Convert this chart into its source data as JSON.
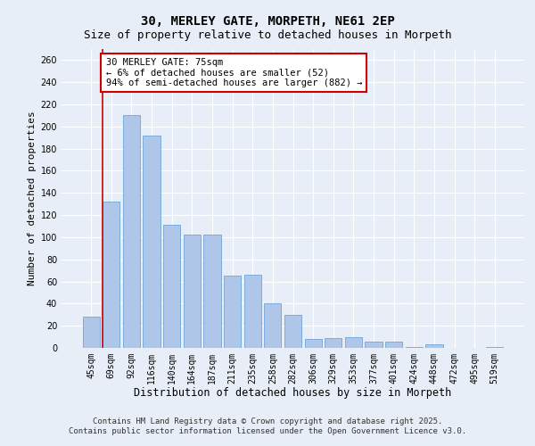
{
  "title": "30, MERLEY GATE, MORPETH, NE61 2EP",
  "subtitle": "Size of property relative to detached houses in Morpeth",
  "xlabel": "Distribution of detached houses by size in Morpeth",
  "ylabel": "Number of detached properties",
  "categories": [
    "45sqm",
    "69sqm",
    "92sqm",
    "116sqm",
    "140sqm",
    "164sqm",
    "187sqm",
    "211sqm",
    "235sqm",
    "258sqm",
    "282sqm",
    "306sqm",
    "329sqm",
    "353sqm",
    "377sqm",
    "401sqm",
    "424sqm",
    "448sqm",
    "472sqm",
    "495sqm",
    "519sqm"
  ],
  "values": [
    28,
    132,
    210,
    192,
    111,
    102,
    102,
    65,
    66,
    40,
    30,
    8,
    9,
    10,
    6,
    6,
    1,
    3,
    0,
    0,
    1
  ],
  "bar_color": "#aec6e8",
  "bar_edge_color": "#5b9bd5",
  "property_bar_index": 1,
  "annotation_text": "30 MERLEY GATE: 75sqm\n← 6% of detached houses are smaller (52)\n94% of semi-detached houses are larger (882) →",
  "annotation_box_color": "#ffffff",
  "annotation_box_edge_color": "#cc0000",
  "property_line_color": "#cc0000",
  "background_color": "#e8eef7",
  "plot_background_color": "#e8eef7",
  "grid_color": "#ffffff",
  "ylim": [
    0,
    270
  ],
  "yticks": [
    0,
    20,
    40,
    60,
    80,
    100,
    120,
    140,
    160,
    180,
    200,
    220,
    240,
    260
  ],
  "footer_line1": "Contains HM Land Registry data © Crown copyright and database right 2025.",
  "footer_line2": "Contains public sector information licensed under the Open Government Licence v3.0.",
  "title_fontsize": 10,
  "subtitle_fontsize": 9,
  "xlabel_fontsize": 8.5,
  "ylabel_fontsize": 8,
  "tick_fontsize": 7,
  "annotation_fontsize": 7.5,
  "footer_fontsize": 6.5
}
